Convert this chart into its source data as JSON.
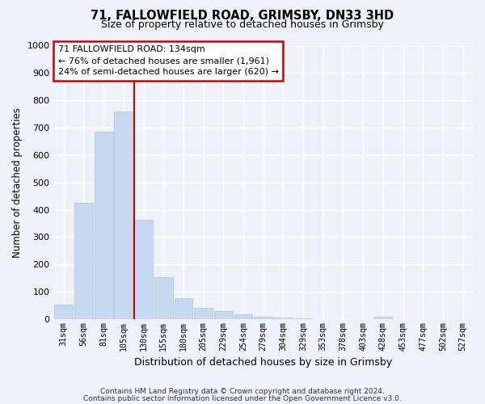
{
  "title1": "71, FALLOWFIELD ROAD, GRIMSBY, DN33 3HD",
  "title2": "Size of property relative to detached houses in Grimsby",
  "xlabel": "Distribution of detached houses by size in Grimsby",
  "ylabel": "Number of detached properties",
  "categories": [
    "31sqm",
    "56sqm",
    "81sqm",
    "105sqm",
    "130sqm",
    "155sqm",
    "180sqm",
    "205sqm",
    "229sqm",
    "254sqm",
    "279sqm",
    "304sqm",
    "329sqm",
    "353sqm",
    "378sqm",
    "403sqm",
    "428sqm",
    "453sqm",
    "477sqm",
    "502sqm",
    "527sqm"
  ],
  "values": [
    52,
    425,
    685,
    760,
    362,
    152,
    77,
    40,
    28,
    16,
    9,
    6,
    2,
    0,
    0,
    0,
    9,
    0,
    0,
    0,
    0
  ],
  "bar_color": "#c6d9f0",
  "bar_edge_color": "#a8c4e0",
  "highlight_bar_index": 4,
  "vline_color": "#cc0000",
  "annotation_text": "71 FALLOWFIELD ROAD: 134sqm\n← 76% of detached houses are smaller (1,961)\n24% of semi-detached houses are larger (620) →",
  "annotation_box_color": "#ffffff",
  "annotation_box_edge_color": "#cc0000",
  "ylim": [
    0,
    1000
  ],
  "yticks": [
    0,
    100,
    200,
    300,
    400,
    500,
    600,
    700,
    800,
    900,
    1000
  ],
  "footer1": "Contains HM Land Registry data © Crown copyright and database right 2024.",
  "footer2": "Contains public sector information licensed under the Open Government Licence v3.0.",
  "bg_color": "#eef2f8",
  "plot_bg_color": "#eef2f8",
  "grid_color": "#ffffff"
}
